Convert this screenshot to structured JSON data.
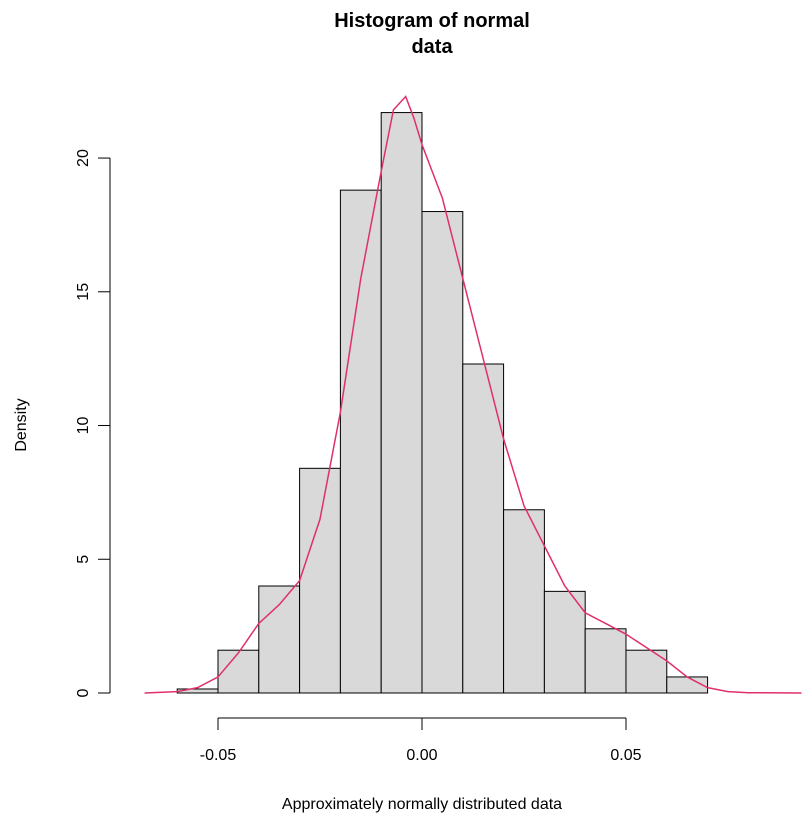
{
  "chart_data": {
    "type": "histogram",
    "title": "Histogram of normal data",
    "xlabel": "Approximately normally distributed data",
    "ylabel": "Density",
    "bins": [
      -0.06,
      -0.05,
      -0.04,
      -0.03,
      -0.02,
      -0.01,
      0,
      0.01,
      0.02,
      0.03,
      0.04,
      0.05,
      0.06,
      0.07
    ],
    "values": [
      0.15,
      1.6,
      4.0,
      8.4,
      18.8,
      21.7,
      18.0,
      12.3,
      6.85,
      3.8,
      2.4,
      1.6,
      0.6
    ],
    "color": "#d9d9d9",
    "edge_color": "#000000",
    "density": {
      "color": "#e0306a",
      "x": [
        -0.068,
        -0.06,
        -0.055,
        -0.05,
        -0.045,
        -0.04,
        -0.035,
        -0.03,
        -0.025,
        -0.02,
        -0.015,
        -0.01,
        -0.007,
        -0.004,
        -0.002,
        0,
        0.005,
        0.01,
        0.015,
        0.02,
        0.025,
        0.03,
        0.035,
        0.04,
        0.045,
        0.05,
        0.055,
        0.06,
        0.065,
        0.07,
        0.075,
        0.08,
        0.093
      ],
      "values": [
        0,
        0.05,
        0.2,
        0.6,
        1.5,
        2.6,
        3.3,
        4.2,
        6.5,
        10.5,
        15.5,
        19.5,
        21.8,
        22.3,
        21.5,
        20.5,
        18.5,
        15.5,
        12.5,
        9.5,
        7.0,
        5.5,
        4.0,
        3.0,
        2.6,
        2.2,
        1.7,
        1.2,
        0.6,
        0.2,
        0.05,
        0.01,
        0
      ]
    },
    "xlim": [
      -0.07,
      0.094
    ],
    "ylim": [
      0,
      23
    ],
    "xticks": [
      {
        "value": -0.05,
        "label": "-0.05"
      },
      {
        "value": 0,
        "label": "0.00"
      },
      {
        "value": 0.05,
        "label": "0.05"
      }
    ],
    "yticks": [
      0,
      5,
      10,
      15,
      20
    ]
  }
}
